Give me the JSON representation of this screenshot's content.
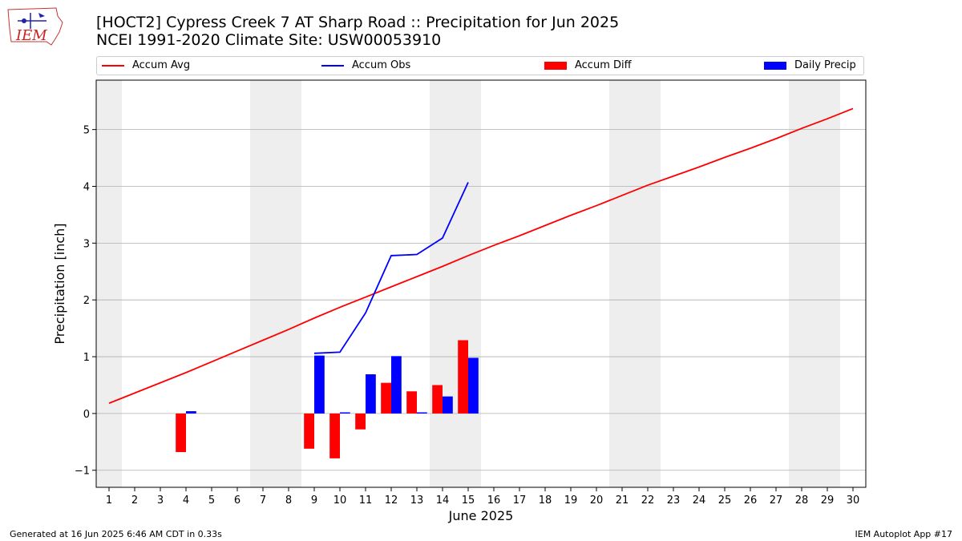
{
  "header": {
    "title": "[HOCT2] Cypress Creek 7 AT Sharp Road :: Precipitation for Jun 2025",
    "subtitle": "NCEI 1991-2020 Climate Site: USW00053910"
  },
  "logo": {
    "text": "IEM",
    "icon": "iem-logo-icon"
  },
  "footer": {
    "left": "Generated at 16 Jun 2025 6:46 AM CDT in 0.33s",
    "right": "IEM Autoplot App #17"
  },
  "colors": {
    "avg": "#ff0000",
    "obs": "#0000ff",
    "diff": "#ff0000",
    "daily": "#0000ff",
    "shade": "#eeeeee",
    "grid": "#b0b0b0"
  },
  "chart_data": {
    "type": "bar",
    "xlabel": "June 2025",
    "ylabel": "Precipitation [inch]",
    "xlim": [
      0.5,
      30.5
    ],
    "ylim": [
      -1.3,
      5.87
    ],
    "x_ticks": [
      1,
      2,
      3,
      4,
      5,
      6,
      7,
      8,
      9,
      10,
      11,
      12,
      13,
      14,
      15,
      16,
      17,
      18,
      19,
      20,
      21,
      22,
      23,
      24,
      25,
      26,
      27,
      28,
      29,
      30
    ],
    "y_ticks": [
      -1,
      0,
      1,
      2,
      3,
      4,
      5
    ],
    "grid": "horizontal",
    "legend_position": "top",
    "weekend_shading": [
      [
        1,
        1
      ],
      [
        7,
        8
      ],
      [
        14,
        15
      ],
      [
        21,
        22
      ],
      [
        28,
        29
      ]
    ],
    "series": [
      {
        "name": "Accum Avg",
        "kind": "line",
        "x": [
          1,
          2,
          3,
          4,
          5,
          6,
          7,
          8,
          9,
          10,
          11,
          12,
          13,
          14,
          15,
          16,
          17,
          18,
          19,
          20,
          21,
          22,
          23,
          24,
          25,
          26,
          27,
          28,
          29,
          30
        ],
        "values": [
          0.18,
          0.36,
          0.54,
          0.72,
          0.91,
          1.1,
          1.29,
          1.48,
          1.68,
          1.87,
          2.05,
          2.23,
          2.41,
          2.59,
          2.78,
          2.96,
          3.13,
          3.31,
          3.49,
          3.66,
          3.84,
          4.02,
          4.18,
          4.34,
          4.51,
          4.67,
          4.84,
          5.02,
          5.19,
          5.37
        ]
      },
      {
        "name": "Accum Obs",
        "kind": "line",
        "x": [
          9,
          10,
          11,
          12,
          13,
          14,
          15
        ],
        "values": [
          1.06,
          1.08,
          1.77,
          2.78,
          2.8,
          3.09,
          4.07
        ]
      },
      {
        "name": "Accum Diff",
        "kind": "bar",
        "x": [
          4,
          9,
          10,
          11,
          12,
          13,
          14,
          15
        ],
        "values": [
          -0.68,
          -0.62,
          -0.79,
          -0.28,
          0.54,
          0.39,
          0.5,
          1.29
        ]
      },
      {
        "name": "Daily Precip",
        "kind": "bar",
        "x": [
          4,
          9,
          10,
          11,
          12,
          13,
          14,
          15
        ],
        "values": [
          0.04,
          1.02,
          0.02,
          0.69,
          1.01,
          0.02,
          0.3,
          0.98
        ]
      }
    ]
  }
}
